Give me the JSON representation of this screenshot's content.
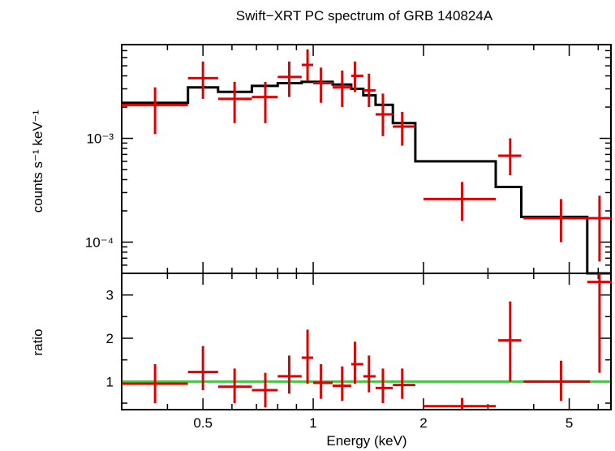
{
  "chart_data": [
    {
      "type": "scatter",
      "title": "Swift−XRT PC spectrum of GRB 140824A",
      "ylabel": "counts s⁻¹ keV⁻¹",
      "xlabel": "",
      "xscale": "log",
      "yscale": "log",
      "xlim": [
        0.3,
        6.5
      ],
      "ylim": [
        5e-05,
        0.008
      ],
      "yticks": [
        {
          "value": 0.001,
          "label": "10⁻³"
        },
        {
          "value": 0.0001,
          "label": "10⁻⁴"
        }
      ],
      "colors": {
        "data": "#e00000",
        "model": "#000000"
      },
      "series": [
        {
          "kind": "data",
          "points": [
            {
              "x": 0.37,
              "xlo": 0.3,
              "xhi": 0.455,
              "y": 0.0021,
              "ylo": 0.0011,
              "yhi": 0.0031
            },
            {
              "x": 0.5,
              "xlo": 0.455,
              "xhi": 0.55,
              "y": 0.0038,
              "ylo": 0.0024,
              "yhi": 0.0055
            },
            {
              "x": 0.61,
              "xlo": 0.55,
              "xhi": 0.68,
              "y": 0.0024,
              "ylo": 0.0014,
              "yhi": 0.0035
            },
            {
              "x": 0.74,
              "xlo": 0.68,
              "xhi": 0.8,
              "y": 0.0025,
              "ylo": 0.0014,
              "yhi": 0.0035
            },
            {
              "x": 0.86,
              "xlo": 0.8,
              "xhi": 0.93,
              "y": 0.0039,
              "ylo": 0.0025,
              "yhi": 0.0055
            },
            {
              "x": 0.965,
              "xlo": 0.93,
              "xhi": 1.0,
              "y": 0.0051,
              "ylo": 0.0036,
              "yhi": 0.0072
            },
            {
              "x": 1.05,
              "xlo": 1.0,
              "xhi": 1.13,
              "y": 0.0034,
              "ylo": 0.0022,
              "yhi": 0.0048
            },
            {
              "x": 1.2,
              "xlo": 1.13,
              "xhi": 1.27,
              "y": 0.0031,
              "ylo": 0.002,
              "yhi": 0.0045
            },
            {
              "x": 1.3,
              "xlo": 1.27,
              "xhi": 1.37,
              "y": 0.004,
              "ylo": 0.0028,
              "yhi": 0.0055
            },
            {
              "x": 1.42,
              "xlo": 1.37,
              "xhi": 1.48,
              "y": 0.0029,
              "ylo": 0.002,
              "yhi": 0.0042
            },
            {
              "x": 1.55,
              "xlo": 1.48,
              "xhi": 1.65,
              "y": 0.0017,
              "ylo": 0.00105,
              "yhi": 0.0027
            },
            {
              "x": 1.75,
              "xlo": 1.65,
              "xhi": 1.9,
              "y": 0.0013,
              "ylo": 0.00085,
              "yhi": 0.0018
            },
            {
              "x": 2.55,
              "xlo": 2.0,
              "xhi": 3.15,
              "y": 0.00026,
              "ylo": 0.00016,
              "yhi": 0.00038
            },
            {
              "x": 3.45,
              "xlo": 3.2,
              "xhi": 3.7,
              "y": 0.00068,
              "ylo": 0.00044,
              "yhi": 0.001
            },
            {
              "x": 4.75,
              "xlo": 3.75,
              "xhi": 5.7,
              "y": 0.00017,
              "ylo": 0.0001,
              "yhi": 0.00026
            },
            {
              "x": 6.05,
              "xlo": 5.6,
              "xhi": 6.5,
              "y": 0.00017,
              "ylo": 6.5e-05,
              "yhi": 0.00028
            }
          ]
        },
        {
          "kind": "model",
          "steps": [
            {
              "xlo": 0.3,
              "xhi": 0.455,
              "y": 0.0022
            },
            {
              "xlo": 0.455,
              "xhi": 0.55,
              "y": 0.0031
            },
            {
              "xlo": 0.55,
              "xhi": 0.68,
              "y": 0.0028
            },
            {
              "xlo": 0.68,
              "xhi": 0.8,
              "y": 0.0032
            },
            {
              "xlo": 0.8,
              "xhi": 0.93,
              "y": 0.0034
            },
            {
              "xlo": 0.93,
              "xhi": 1.13,
              "y": 0.0035
            },
            {
              "xlo": 1.13,
              "xhi": 1.27,
              "y": 0.0033
            },
            {
              "xlo": 1.27,
              "xhi": 1.37,
              "y": 0.003
            },
            {
              "xlo": 1.37,
              "xhi": 1.48,
              "y": 0.0026
            },
            {
              "xlo": 1.48,
              "xhi": 1.65,
              "y": 0.0021
            },
            {
              "xlo": 1.65,
              "xhi": 1.9,
              "y": 0.0014
            },
            {
              "xlo": 1.9,
              "xhi": 3.15,
              "y": 0.0006
            },
            {
              "xlo": 3.15,
              "xhi": 3.7,
              "y": 0.00034
            },
            {
              "xlo": 3.7,
              "xhi": 5.6,
              "y": 0.000175
            },
            {
              "xlo": 5.6,
              "xhi": 6.5,
              "y": 4e-05
            }
          ]
        }
      ]
    },
    {
      "type": "scatter",
      "ylabel": "ratio",
      "xlabel": "Energy (keV)",
      "xscale": "log",
      "yscale": "linear",
      "xlim": [
        0.3,
        6.5
      ],
      "ylim": [
        0.35,
        3.5
      ],
      "xticks": [
        {
          "value": 0.5,
          "label": "0.5"
        },
        {
          "value": 1,
          "label": "1"
        },
        {
          "value": 2,
          "label": "2"
        },
        {
          "value": 5,
          "label": "5"
        }
      ],
      "yticks": [
        {
          "value": 1,
          "label": "1"
        },
        {
          "value": 2,
          "label": "2"
        },
        {
          "value": 3,
          "label": "3"
        }
      ],
      "colors": {
        "data": "#e00000",
        "reference": "#22dd22"
      },
      "reference_line": 1,
      "series": [
        {
          "kind": "data",
          "points": [
            {
              "x": 0.37,
              "xlo": 0.3,
              "xhi": 0.455,
              "y": 0.95,
              "ylo": 0.5,
              "yhi": 1.4
            },
            {
              "x": 0.5,
              "xlo": 0.455,
              "xhi": 0.55,
              "y": 1.22,
              "ylo": 0.8,
              "yhi": 1.82
            },
            {
              "x": 0.61,
              "xlo": 0.55,
              "xhi": 0.68,
              "y": 0.88,
              "ylo": 0.5,
              "yhi": 1.3
            },
            {
              "x": 0.74,
              "xlo": 0.68,
              "xhi": 0.8,
              "y": 0.8,
              "ylo": 0.4,
              "yhi": 1.2
            },
            {
              "x": 0.86,
              "xlo": 0.8,
              "xhi": 0.93,
              "y": 1.12,
              "ylo": 0.72,
              "yhi": 1.6
            },
            {
              "x": 0.965,
              "xlo": 0.93,
              "xhi": 1.0,
              "y": 1.55,
              "ylo": 0.95,
              "yhi": 2.2
            },
            {
              "x": 1.05,
              "xlo": 1.0,
              "xhi": 1.13,
              "y": 0.97,
              "ylo": 0.6,
              "yhi": 1.4
            },
            {
              "x": 1.2,
              "xlo": 1.13,
              "xhi": 1.27,
              "y": 0.9,
              "ylo": 0.55,
              "yhi": 1.35
            },
            {
              "x": 1.3,
              "xlo": 1.27,
              "xhi": 1.37,
              "y": 1.4,
              "ylo": 0.95,
              "yhi": 1.92
            },
            {
              "x": 1.42,
              "xlo": 1.37,
              "xhi": 1.48,
              "y": 1.12,
              "ylo": 0.75,
              "yhi": 1.6
            },
            {
              "x": 1.55,
              "xlo": 1.48,
              "xhi": 1.65,
              "y": 0.85,
              "ylo": 0.5,
              "yhi": 1.3
            },
            {
              "x": 1.75,
              "xlo": 1.65,
              "xhi": 1.9,
              "y": 0.92,
              "ylo": 0.6,
              "yhi": 1.3
            },
            {
              "x": 2.55,
              "xlo": 2.0,
              "xhi": 3.15,
              "y": 0.43,
              "ylo": 0.36,
              "yhi": 0.62
            },
            {
              "x": 3.45,
              "xlo": 3.2,
              "xhi": 3.7,
              "y": 1.95,
              "ylo": 1.0,
              "yhi": 2.85
            },
            {
              "x": 4.75,
              "xlo": 3.75,
              "xhi": 5.7,
              "y": 1.0,
              "ylo": 0.55,
              "yhi": 1.48
            },
            {
              "x": 6.05,
              "xlo": 5.6,
              "xhi": 6.5,
              "y": 3.3,
              "ylo": 1.2,
              "yhi": 3.5
            }
          ]
        }
      ]
    }
  ]
}
